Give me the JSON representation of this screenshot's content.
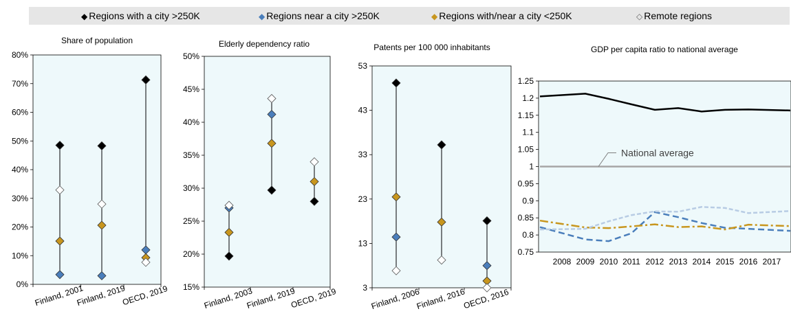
{
  "legend": [
    {
      "label": "Regions with a city >250K",
      "marker": "diamond-filled",
      "color": "#000000"
    },
    {
      "label": "Regions near a city >250K",
      "marker": "diamond-filled",
      "color": "#4a7ebb"
    },
    {
      "label": "Regions with/near a city <250K",
      "marker": "diamond-filled",
      "color": "#c8961e"
    },
    {
      "label": "Remote regions",
      "marker": "diamond-open",
      "color": "#c5d5ea"
    }
  ],
  "colors": {
    "panel_bg": "#eef9fb",
    "legend_bg": "#e6e6e6",
    "national_avg": "#a6a6a6"
  },
  "chart_data": [
    {
      "type": "scatter",
      "title": "Share of population",
      "categories": [
        "Finland, 2001",
        "Finland, 2019",
        "OECD, 2019"
      ],
      "ylim": [
        0,
        80
      ],
      "yticks": [
        "0%",
        "10%",
        "20%",
        "30%",
        "40%",
        "50%",
        "60%",
        "70%",
        "80%"
      ],
      "series": [
        {
          "name": "Regions with a city >250K",
          "values": [
            48.5,
            48.3,
            71.3
          ]
        },
        {
          "name": "Regions near a city >250K",
          "values": [
            3.4,
            3.0,
            12.0
          ]
        },
        {
          "name": "Regions with/near a city <250K",
          "values": [
            15.1,
            20.6,
            9.3
          ]
        },
        {
          "name": "Remote regions",
          "values": [
            32.9,
            28.0,
            7.7
          ]
        }
      ]
    },
    {
      "type": "scatter",
      "title": "Elderly dependency ratio",
      "categories": [
        "Finland, 2003",
        "Finland, 2019",
        "OECD, 2019"
      ],
      "ylim": [
        15,
        50
      ],
      "yticks": [
        "15%",
        "20%",
        "25%",
        "30%",
        "35%",
        "40%",
        "45%",
        "50%"
      ],
      "series": [
        {
          "name": "Regions with a city >250K",
          "values": [
            19.7,
            29.7,
            28.0
          ]
        },
        {
          "name": "Regions near a city >250K",
          "values": [
            27.0,
            41.2,
            null
          ]
        },
        {
          "name": "Regions with/near a city <250K",
          "values": [
            23.3,
            36.8,
            31.0
          ]
        },
        {
          "name": "Remote regions",
          "values": [
            27.4,
            43.6,
            34.0
          ]
        }
      ]
    },
    {
      "type": "scatter",
      "title": "Patents per 100 000 inhabitants",
      "categories": [
        "Finland, 2006",
        "Finland, 2016",
        "OECD, 2016"
      ],
      "ylim": [
        3,
        55
      ],
      "yticks": [
        "3",
        "13",
        "23",
        "33",
        "43",
        "53"
      ],
      "series": [
        {
          "name": "Regions with a city >250K",
          "values": [
            51.0,
            36.5,
            18.7
          ]
        },
        {
          "name": "Regions near a city >250K",
          "values": [
            14.9,
            null,
            8.2
          ]
        },
        {
          "name": "Regions with/near a city <250K",
          "values": [
            24.3,
            18.4,
            4.6
          ]
        },
        {
          "name": "Remote regions",
          "values": [
            7.0,
            9.5,
            3.0
          ]
        }
      ]
    },
    {
      "type": "line",
      "title": "GDP per capita ratio to national average",
      "x": [
        "2008",
        "2009",
        "2010",
        "2011",
        "2012",
        "2013",
        "2014",
        "2015",
        "2016",
        "2017"
      ],
      "ylim": [
        0.75,
        1.25
      ],
      "yticks": [
        "0.75",
        "0.8",
        "0.85",
        "0.9",
        "0.95",
        "1",
        "1.05",
        "1.1",
        "1.15",
        "1.2",
        "1.25"
      ],
      "annotation": "National average",
      "series": [
        {
          "name": "Regions with a city >250K",
          "values": [
            1.205,
            1.213,
            1.198,
            1.182,
            1.166,
            1.171,
            1.161,
            1.166,
            1.167,
            1.164
          ]
        },
        {
          "name": "Regions near a city >250K",
          "values": [
            0.823,
            0.787,
            0.782,
            0.805,
            0.867,
            0.852,
            0.835,
            0.821,
            0.818,
            0.812
          ]
        },
        {
          "name": "Regions with/near a city <250K",
          "values": [
            0.842,
            0.822,
            0.82,
            0.825,
            0.831,
            0.823,
            0.825,
            0.816,
            0.83,
            0.826
          ]
        },
        {
          "name": "Remote regions",
          "values": [
            0.816,
            0.818,
            0.84,
            0.858,
            0.869,
            0.868,
            0.882,
            0.879,
            0.864,
            0.87
          ]
        },
        {
          "name": "National average",
          "values": [
            1,
            1,
            1,
            1,
            1,
            1,
            1,
            1,
            1,
            1
          ]
        }
      ]
    }
  ]
}
